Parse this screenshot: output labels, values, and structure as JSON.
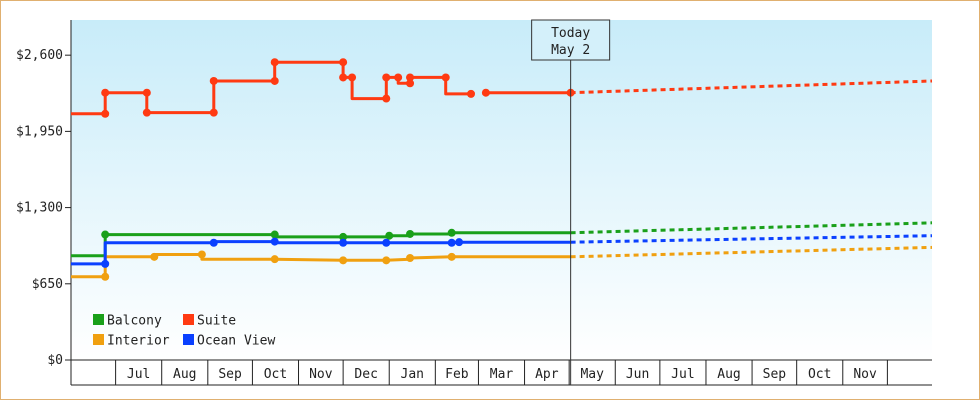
{
  "chart_data": {
    "type": "line",
    "title": "",
    "xlabel": "",
    "ylabel": "",
    "ylim": [
      0,
      2900
    ],
    "y_ticks": [
      {
        "value": 0,
        "label": "$0"
      },
      {
        "value": 650,
        "label": "$650"
      },
      {
        "value": 1300,
        "label": "$1,300"
      },
      {
        "value": 1950,
        "label": "$1,950"
      },
      {
        "value": 2600,
        "label": "$2,600"
      }
    ],
    "x_range": [
      "2023-06-01",
      "2024-12-31"
    ],
    "x_tick_labels": [
      {
        "date": "2023-07-01",
        "label": "Jul"
      },
      {
        "date": "2023-08-01",
        "label": "Aug"
      },
      {
        "date": "2023-09-01",
        "label": "Sep"
      },
      {
        "date": "2023-10-01",
        "label": "Oct"
      },
      {
        "date": "2023-11-01",
        "label": "Nov"
      },
      {
        "date": "2023-12-01",
        "label": "Dec"
      },
      {
        "date": "2024-01-01",
        "label": "Jan"
      },
      {
        "date": "2024-02-01",
        "label": "Feb"
      },
      {
        "date": "2024-03-01",
        "label": "Mar"
      },
      {
        "date": "2024-04-01",
        "label": "Apr"
      },
      {
        "date": "2024-05-01",
        "label": "May"
      },
      {
        "date": "2024-06-01",
        "label": "Jun"
      },
      {
        "date": "2024-07-01",
        "label": "Jul"
      },
      {
        "date": "2024-08-01",
        "label": "Aug"
      },
      {
        "date": "2024-09-01",
        "label": "Sep"
      },
      {
        "date": "2024-10-01",
        "label": "Oct"
      },
      {
        "date": "2024-11-01",
        "label": "Nov"
      }
    ],
    "grid": false,
    "legend": "bottom-left",
    "today": {
      "date": "2024-05-02",
      "label_line1": "Today",
      "label_line2": "May 2"
    },
    "series": [
      {
        "name": "Balcony",
        "color": "#1aa01a",
        "points": [
          {
            "date": "2023-06-01",
            "value": 890
          },
          {
            "date": "2023-06-24",
            "value": 890
          },
          {
            "date": "2023-06-24",
            "value": 1070,
            "marker": true
          },
          {
            "date": "2023-10-16",
            "value": 1070,
            "marker": true
          },
          {
            "date": "2023-10-16",
            "value": 1050
          },
          {
            "date": "2023-12-01",
            "value": 1050,
            "marker": true
          },
          {
            "date": "2024-01-01",
            "value": 1050
          },
          {
            "date": "2024-01-01",
            "value": 1060,
            "marker": true
          },
          {
            "date": "2024-01-15",
            "value": 1060
          },
          {
            "date": "2024-01-15",
            "value": 1075,
            "marker": true
          },
          {
            "date": "2024-02-12",
            "value": 1075
          },
          {
            "date": "2024-02-12",
            "value": 1085,
            "marker": true
          },
          {
            "date": "2024-05-02",
            "value": 1085
          }
        ],
        "forecast": [
          {
            "date": "2024-05-02",
            "value": 1085
          },
          {
            "date": "2024-12-31",
            "value": 1170
          }
        ]
      },
      {
        "name": "Suite",
        "color": "#ff3a12",
        "points": [
          {
            "date": "2023-06-01",
            "value": 2100
          },
          {
            "date": "2023-06-24",
            "value": 2100,
            "marker": true
          },
          {
            "date": "2023-06-24",
            "value": 2280,
            "marker": true
          },
          {
            "date": "2023-07-22",
            "value": 2280,
            "marker": true
          },
          {
            "date": "2023-07-22",
            "value": 2110,
            "marker": true
          },
          {
            "date": "2023-09-05",
            "value": 2110,
            "marker": true
          },
          {
            "date": "2023-09-05",
            "value": 2380,
            "marker": true
          },
          {
            "date": "2023-10-16",
            "value": 2380,
            "marker": true
          },
          {
            "date": "2023-10-16",
            "value": 2540,
            "marker": true
          },
          {
            "date": "2023-12-01",
            "value": 2540,
            "marker": true
          },
          {
            "date": "2023-12-01",
            "value": 2410,
            "marker": true
          },
          {
            "date": "2023-12-07",
            "value": 2410,
            "marker": true
          },
          {
            "date": "2023-12-07",
            "value": 2230
          },
          {
            "date": "2023-12-30",
            "value": 2230,
            "marker": true
          },
          {
            "date": "2023-12-30",
            "value": 2410,
            "marker": true
          },
          {
            "date": "2024-01-07",
            "value": 2410,
            "marker": true
          },
          {
            "date": "2024-01-07",
            "value": 2360
          },
          {
            "date": "2024-01-15",
            "value": 2360,
            "marker": true
          },
          {
            "date": "2024-01-15",
            "value": 2410,
            "marker": true
          },
          {
            "date": "2024-02-08",
            "value": 2410,
            "marker": true
          },
          {
            "date": "2024-02-08",
            "value": 2270
          },
          {
            "date": "2024-02-25",
            "value": 2270,
            "marker": true
          }
        ],
        "points_2": [
          {
            "date": "2024-03-06",
            "value": 2280,
            "marker": true
          },
          {
            "date": "2024-05-02",
            "value": 2280,
            "marker": true
          }
        ],
        "forecast": [
          {
            "date": "2024-05-02",
            "value": 2280
          },
          {
            "date": "2024-12-31",
            "value": 2380
          }
        ]
      },
      {
        "name": "Interior",
        "color": "#f0a010",
        "points": [
          {
            "date": "2023-06-01",
            "value": 710
          },
          {
            "date": "2023-06-24",
            "value": 710,
            "marker": true
          },
          {
            "date": "2023-06-24",
            "value": 880
          },
          {
            "date": "2023-07-27",
            "value": 880,
            "marker": true
          },
          {
            "date": "2023-07-27",
            "value": 900
          },
          {
            "date": "2023-08-28",
            "value": 900,
            "marker": true
          },
          {
            "date": "2023-08-28",
            "value": 860
          },
          {
            "date": "2023-10-16",
            "value": 860,
            "marker": true
          },
          {
            "date": "2023-12-01",
            "value": 850,
            "marker": true
          },
          {
            "date": "2023-12-30",
            "value": 850,
            "marker": true
          },
          {
            "date": "2024-01-15",
            "value": 860
          },
          {
            "date": "2024-01-15",
            "value": 870,
            "marker": true
          },
          {
            "date": "2024-02-12",
            "value": 880,
            "marker": true
          },
          {
            "date": "2024-05-02",
            "value": 880
          }
        ],
        "forecast": [
          {
            "date": "2024-05-02",
            "value": 880
          },
          {
            "date": "2024-12-31",
            "value": 960
          }
        ]
      },
      {
        "name": "Ocean View",
        "color": "#0a40ff",
        "points": [
          {
            "date": "2023-06-01",
            "value": 820
          },
          {
            "date": "2023-06-24",
            "value": 820,
            "marker": true
          },
          {
            "date": "2023-06-24",
            "value": 1000
          },
          {
            "date": "2023-09-05",
            "value": 1000,
            "marker": true
          },
          {
            "date": "2023-09-05",
            "value": 1010
          },
          {
            "date": "2023-10-16",
            "value": 1010,
            "marker": true
          },
          {
            "date": "2023-10-16",
            "value": 1000
          },
          {
            "date": "2023-12-01",
            "value": 1000,
            "marker": true
          },
          {
            "date": "2023-12-30",
            "value": 1000,
            "marker": true
          },
          {
            "date": "2024-02-12",
            "value": 1000,
            "marker": true
          },
          {
            "date": "2024-02-17",
            "value": 1005,
            "marker": true
          },
          {
            "date": "2024-05-02",
            "value": 1005
          }
        ],
        "forecast": [
          {
            "date": "2024-05-02",
            "value": 1005
          },
          {
            "date": "2024-12-31",
            "value": 1060
          }
        ]
      }
    ]
  },
  "legend_layout": [
    [
      "Balcony",
      "Suite"
    ],
    [
      "Interior",
      "Ocean View"
    ]
  ]
}
